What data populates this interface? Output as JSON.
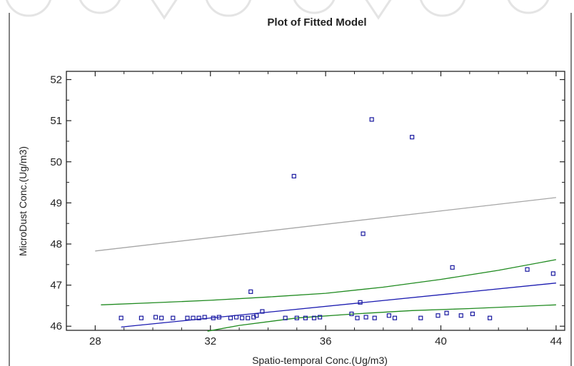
{
  "chart_data": {
    "type": "scatter",
    "title": "Plot of Fitted Model",
    "xlabel": "Spatio-temporal Conc.(Ug/m3)",
    "ylabel": "MicroDust Conc.(Ug/m3)",
    "xlim": [
      27,
      44.3
    ],
    "ylim": [
      45.9,
      52.2
    ],
    "xticks": [
      "28",
      "32",
      "36",
      "40",
      "44"
    ],
    "yticks": [
      "46",
      "47",
      "48",
      "49",
      "50",
      "51",
      "52"
    ],
    "grid": false,
    "legend": "none",
    "points": [
      {
        "x": 28.9,
        "y": 46.2
      },
      {
        "x": 29.6,
        "y": 46.2
      },
      {
        "x": 30.1,
        "y": 46.22
      },
      {
        "x": 30.3,
        "y": 46.2
      },
      {
        "x": 30.7,
        "y": 46.2
      },
      {
        "x": 31.2,
        "y": 46.2
      },
      {
        "x": 31.4,
        "y": 46.2
      },
      {
        "x": 31.6,
        "y": 46.2
      },
      {
        "x": 31.8,
        "y": 46.22
      },
      {
        "x": 32.1,
        "y": 46.2
      },
      {
        "x": 32.3,
        "y": 46.22
      },
      {
        "x": 32.7,
        "y": 46.2
      },
      {
        "x": 32.9,
        "y": 46.22
      },
      {
        "x": 33.1,
        "y": 46.2
      },
      {
        "x": 33.3,
        "y": 46.2
      },
      {
        "x": 33.4,
        "y": 46.84
      },
      {
        "x": 33.5,
        "y": 46.22
      },
      {
        "x": 33.6,
        "y": 46.26
      },
      {
        "x": 33.8,
        "y": 46.36
      },
      {
        "x": 34.6,
        "y": 46.2
      },
      {
        "x": 34.9,
        "y": 49.65
      },
      {
        "x": 35.0,
        "y": 46.2
      },
      {
        "x": 35.3,
        "y": 46.2
      },
      {
        "x": 35.6,
        "y": 46.2
      },
      {
        "x": 35.8,
        "y": 46.22
      },
      {
        "x": 36.9,
        "y": 46.3
      },
      {
        "x": 37.1,
        "y": 46.2
      },
      {
        "x": 37.2,
        "y": 46.58
      },
      {
        "x": 37.3,
        "y": 48.25
      },
      {
        "x": 37.4,
        "y": 46.22
      },
      {
        "x": 37.6,
        "y": 51.03
      },
      {
        "x": 37.7,
        "y": 46.2
      },
      {
        "x": 38.2,
        "y": 46.26
      },
      {
        "x": 38.4,
        "y": 46.2
      },
      {
        "x": 39.0,
        "y": 50.6
      },
      {
        "x": 39.3,
        "y": 46.2
      },
      {
        "x": 39.9,
        "y": 46.26
      },
      {
        "x": 40.2,
        "y": 46.32
      },
      {
        "x": 40.4,
        "y": 47.43
      },
      {
        "x": 40.7,
        "y": 46.26
      },
      {
        "x": 41.1,
        "y": 46.3
      },
      {
        "x": 41.7,
        "y": 46.2
      },
      {
        "x": 43.0,
        "y": 47.38
      },
      {
        "x": 43.9,
        "y": 47.28
      }
    ],
    "lines": [
      {
        "role": "fitted",
        "color": "#1a1ab0",
        "x": [
          28.9,
          44.0
        ],
        "y": [
          45.98,
          47.05
        ]
      },
      {
        "role": "confidence-upper",
        "color": "#1f8a1f",
        "x": [
          28.2,
          30.0,
          32.0,
          34.0,
          36.0,
          38.0,
          40.0,
          42.0,
          44.0
        ],
        "y": [
          46.52,
          46.57,
          46.63,
          46.71,
          46.8,
          46.95,
          47.14,
          47.36,
          47.62
        ]
      },
      {
        "role": "confidence-lower",
        "color": "#1f8a1f",
        "x": [
          31.9,
          33.0,
          35.0,
          37.0,
          39.0,
          41.0,
          44.0
        ],
        "y": [
          45.88,
          46.02,
          46.2,
          46.3,
          46.38,
          46.43,
          46.52
        ]
      },
      {
        "role": "prediction-upper",
        "color": "#a6a6a6",
        "x": [
          28.0,
          44.0
        ],
        "y": [
          47.83,
          49.13
        ]
      }
    ],
    "colors": {
      "points": "#1a1aa0",
      "axes": "#222222",
      "frame": "#333333"
    }
  }
}
